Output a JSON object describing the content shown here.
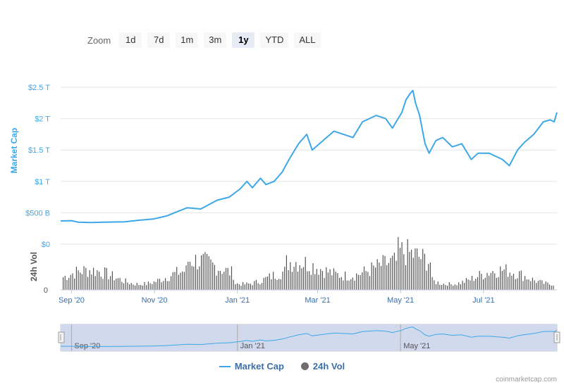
{
  "zoom": {
    "label": "Zoom",
    "buttons": [
      {
        "label": "1d",
        "active": false
      },
      {
        "label": "7d",
        "active": false
      },
      {
        "label": "1m",
        "active": false
      },
      {
        "label": "3m",
        "active": false
      },
      {
        "label": "1y",
        "active": true
      },
      {
        "label": "YTD",
        "active": false
      },
      {
        "label": "ALL",
        "active": false
      }
    ]
  },
  "legend": {
    "market_cap": "Market Cap",
    "volume": "24h Vol"
  },
  "credits": "coinmarketcap.com",
  "colors": {
    "line": "#3ea7e8",
    "volume": "#555555",
    "navigator_fill": "#ccd6eb",
    "grid": "#e6e6e6"
  },
  "chart_data": {
    "type": "line",
    "x_range": [
      "2020-08-24",
      "2021-08-24"
    ],
    "y_axis": {
      "label": "Market Cap",
      "ylim": [
        0,
        2500000000000
      ],
      "ticks": [
        500000000000,
        1000000000000,
        1500000000000,
        2000000000000,
        2500000000000
      ],
      "tick_labels": [
        "$500 B",
        "$1 T",
        "$1.5 T",
        "$2 T",
        "$2.5 T"
      ]
    },
    "volume_axis": {
      "label": "24h Vol",
      "tick_labels": [
        "$0",
        "0"
      ]
    },
    "x_ticks": [
      {
        "date": "2020-09-01",
        "label": "Sep '20"
      },
      {
        "date": "2020-11-01",
        "label": "Nov '20"
      },
      {
        "date": "2021-01-01",
        "label": "Jan '21"
      },
      {
        "date": "2021-03-01",
        "label": "Mar '21"
      },
      {
        "date": "2021-05-01",
        "label": "May '21"
      },
      {
        "date": "2021-07-01",
        "label": "Jul '21"
      }
    ],
    "navigator_ticks": [
      {
        "date": "2020-09-01",
        "label": "Sep '20"
      },
      {
        "date": "2021-01-01",
        "label": "Jan '21"
      },
      {
        "date": "2021-05-01",
        "label": "May '21"
      }
    ],
    "series": [
      {
        "name": "Market Cap",
        "x": [
          "2020-08-24",
          "2020-09-01",
          "2020-09-06",
          "2020-09-15",
          "2020-09-25",
          "2020-10-10",
          "2020-10-20",
          "2020-10-31",
          "2020-11-10",
          "2020-11-18",
          "2020-11-25",
          "2020-12-05",
          "2020-12-17",
          "2020-12-26",
          "2021-01-03",
          "2021-01-08",
          "2021-01-12",
          "2021-01-18",
          "2021-01-22",
          "2021-01-28",
          "2021-02-03",
          "2021-02-08",
          "2021-02-15",
          "2021-02-21",
          "2021-02-25",
          "2021-03-05",
          "2021-03-13",
          "2021-03-20",
          "2021-03-27",
          "2021-04-03",
          "2021-04-13",
          "2021-04-20",
          "2021-04-25",
          "2021-05-02",
          "2021-05-05",
          "2021-05-08",
          "2021-05-10",
          "2021-05-12",
          "2021-05-15",
          "2021-05-19",
          "2021-05-22",
          "2021-05-27",
          "2021-06-01",
          "2021-06-08",
          "2021-06-15",
          "2021-06-22",
          "2021-06-27",
          "2021-07-05",
          "2021-07-15",
          "2021-07-20",
          "2021-07-26",
          "2021-07-31",
          "2021-08-07",
          "2021-08-14",
          "2021-08-19",
          "2021-08-22",
          "2021-08-24"
        ],
        "values": [
          370000000000,
          375000000000,
          350000000000,
          345000000000,
          350000000000,
          355000000000,
          380000000000,
          400000000000,
          450000000000,
          520000000000,
          580000000000,
          560000000000,
          700000000000,
          750000000000,
          880000000000,
          1000000000000,
          900000000000,
          1050000000000,
          950000000000,
          1000000000000,
          1150000000000,
          1350000000000,
          1600000000000,
          1750000000000,
          1500000000000,
          1650000000000,
          1800000000000,
          1750000000000,
          1700000000000,
          1950000000000,
          2050000000000,
          2000000000000,
          1850000000000,
          2100000000000,
          2300000000000,
          2400000000000,
          2450000000000,
          2250000000000,
          2050000000000,
          1600000000000,
          1450000000000,
          1650000000000,
          1700000000000,
          1550000000000,
          1600000000000,
          1350000000000,
          1450000000000,
          1450000000000,
          1350000000000,
          1250000000000,
          1500000000000,
          1620000000000,
          1750000000000,
          1950000000000,
          1980000000000,
          1950000000000,
          2100000000000
        ]
      }
    ]
  }
}
